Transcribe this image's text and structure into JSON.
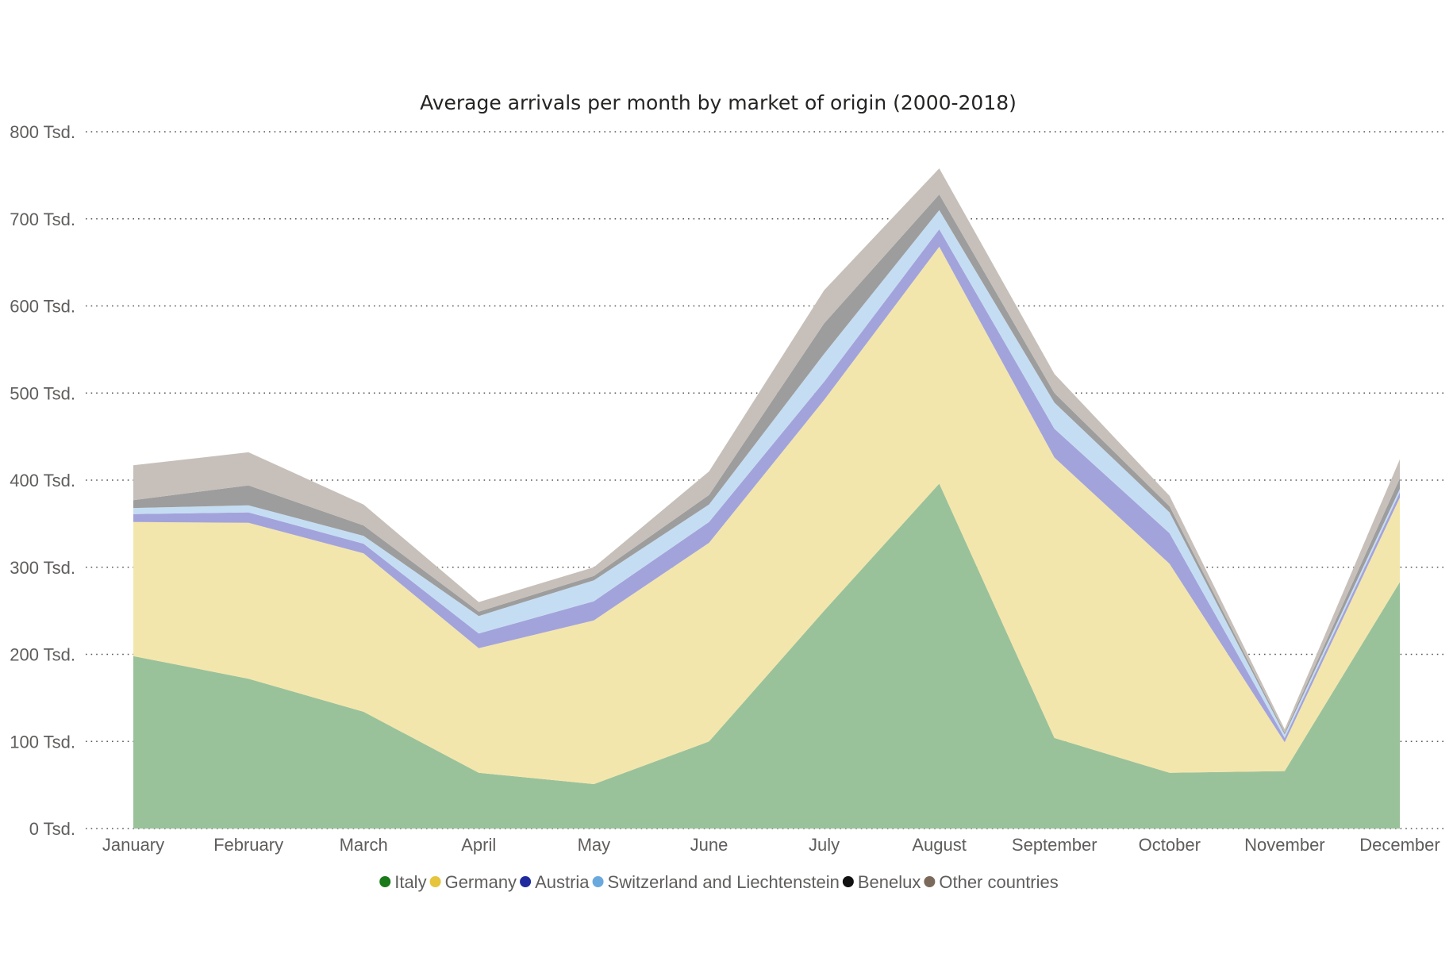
{
  "chart_data": {
    "type": "area",
    "stacked": true,
    "title": "Average arrivals per month by market of origin (2000-2018)",
    "xlabel": "",
    "ylabel": "",
    "categories": [
      "January",
      "February",
      "March",
      "April",
      "May",
      "June",
      "July",
      "August",
      "September",
      "October",
      "November",
      "December"
    ],
    "ylim": [
      0,
      800000
    ],
    "yticks": [
      {
        "value": 0,
        "label": "0 Tsd."
      },
      {
        "value": 100000,
        "label": "100 Tsd."
      },
      {
        "value": 200000,
        "label": "200 Tsd."
      },
      {
        "value": 300000,
        "label": "300 Tsd."
      },
      {
        "value": 400000,
        "label": "400 Tsd."
      },
      {
        "value": 500000,
        "label": "500 Tsd."
      },
      {
        "value": 600000,
        "label": "600 Tsd."
      },
      {
        "value": 700000,
        "label": "700 Tsd."
      },
      {
        "value": 800000,
        "label": "800 Tsd."
      }
    ],
    "grid": true,
    "legend_position": "bottom-center",
    "series": [
      {
        "name": "Italy",
        "color": "#1a7a1a",
        "fill": "#9ac29a",
        "values": [
          198000,
          172000,
          134000,
          64000,
          51000,
          100000,
          250000,
          396000,
          104000,
          64000,
          66000,
          283000
        ]
      },
      {
        "name": "Germany",
        "color": "#e6c43c",
        "fill": "#f3e6ac",
        "values": [
          154000,
          179000,
          182000,
          143000,
          188000,
          228000,
          242000,
          272000,
          322000,
          240000,
          33000,
          97000
        ]
      },
      {
        "name": "Austria",
        "color": "#1f2a9e",
        "fill": "#a3a3db",
        "values": [
          9000,
          12000,
          11000,
          17000,
          22000,
          24000,
          21000,
          20000,
          33000,
          35000,
          5000,
          6000
        ]
      },
      {
        "name": "Switzerland and Liechtenstein",
        "color": "#6aa9de",
        "fill": "#c5ddf3",
        "values": [
          7000,
          8000,
          9000,
          20000,
          24000,
          20000,
          32000,
          22000,
          30000,
          24000,
          4000,
          4000
        ]
      },
      {
        "name": "Benelux",
        "color": "#111111",
        "fill": "#9d9d9d",
        "values": [
          9000,
          23000,
          12000,
          5000,
          5000,
          11000,
          35000,
          18000,
          11000,
          7000,
          2000,
          12000
        ]
      },
      {
        "name": "Other countries",
        "color": "#7b6a5c",
        "fill": "#c7c0ba",
        "values": [
          40000,
          38000,
          24000,
          11000,
          10000,
          27000,
          38000,
          30000,
          22000,
          12000,
          4000,
          22000
        ]
      }
    ]
  }
}
